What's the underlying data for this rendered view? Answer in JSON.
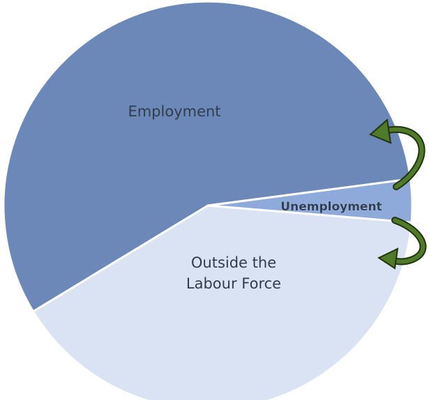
{
  "chart_data": {
    "type": "pie",
    "categories": [
      "Employment",
      "Unemployment",
      "Outside the Labour Force"
    ],
    "values": [
      56.6,
      3.4,
      40
    ],
    "colors": [
      "#6b88b8",
      "#8eaadb",
      "#dae3f3"
    ]
  }
}
